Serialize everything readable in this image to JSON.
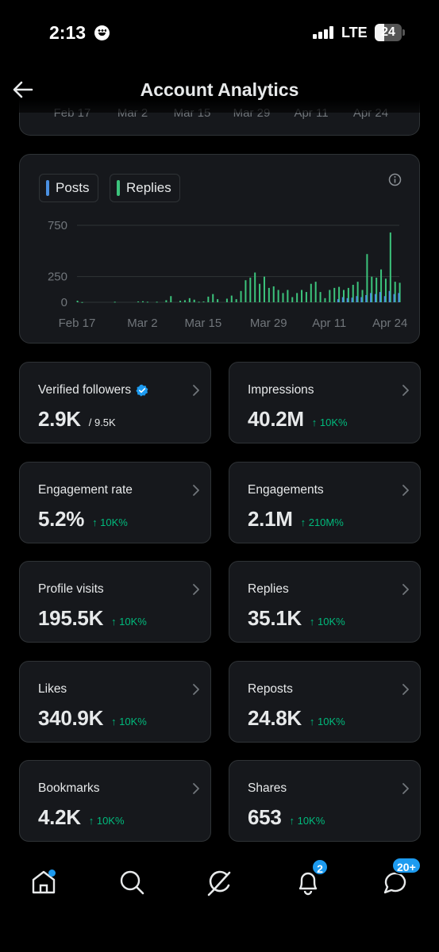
{
  "status_bar": {
    "time": "2:13",
    "network": "LTE",
    "battery": "24"
  },
  "header": {
    "title": "Account Analytics"
  },
  "prev_chart_axis": [
    "Feb 17",
    "Mar 2",
    "Mar 15",
    "Mar 29",
    "Apr 11",
    "Apr 24"
  ],
  "chart_card": {
    "legend": [
      {
        "label": "Posts",
        "color": "#4a90e2"
      },
      {
        "label": "Replies",
        "color": "#3cc47c"
      }
    ]
  },
  "chart_data": {
    "type": "bar",
    "y_ticks": [
      0,
      250,
      750
    ],
    "ylim": [
      0,
      820
    ],
    "x_tick_labels": [
      "Feb 17",
      "Mar 2",
      "Mar 15",
      "Mar 29",
      "Apr 11",
      "Apr 24"
    ],
    "x_tick_index": [
      0,
      14,
      27,
      41,
      54,
      67
    ],
    "series": [
      {
        "name": "Replies",
        "color": "#3cc47c",
        "values": [
          15,
          2,
          0,
          0,
          0,
          0,
          0,
          0,
          5,
          0,
          0,
          0,
          0,
          8,
          10,
          5,
          0,
          5,
          0,
          20,
          60,
          0,
          15,
          20,
          40,
          25,
          5,
          8,
          55,
          80,
          30,
          0,
          35,
          65,
          30,
          110,
          215,
          240,
          290,
          180,
          250,
          140,
          155,
          120,
          90,
          120,
          50,
          90,
          120,
          100,
          180,
          200,
          100,
          40,
          120,
          140,
          150,
          120,
          140,
          170,
          200,
          120,
          470,
          250,
          240,
          320,
          230,
          680,
          200,
          190
        ]
      },
      {
        "name": "Posts",
        "color": "#4a90e2",
        "values": [
          0,
          0,
          0,
          0,
          0,
          0,
          0,
          0,
          0,
          0,
          0,
          0,
          0,
          0,
          0,
          0,
          0,
          0,
          0,
          0,
          0,
          0,
          0,
          0,
          0,
          0,
          0,
          0,
          0,
          0,
          0,
          0,
          0,
          0,
          0,
          0,
          0,
          0,
          0,
          0,
          0,
          0,
          0,
          0,
          0,
          0,
          0,
          0,
          0,
          0,
          0,
          0,
          0,
          0,
          0,
          0,
          30,
          50,
          40,
          45,
          60,
          50,
          70,
          90,
          80,
          100,
          60,
          110,
          80,
          90
        ]
      }
    ]
  },
  "stats": [
    {
      "label": "Verified followers",
      "value": "2.9K",
      "sub": "/ 9.5K",
      "delta": "",
      "verified": true
    },
    {
      "label": "Impressions",
      "value": "40.2M",
      "sub": "",
      "delta": "↑ 10K%"
    },
    {
      "label": "Engagement rate",
      "value": "5.2%",
      "sub": "",
      "delta": "↑ 10K%"
    },
    {
      "label": "Engagements",
      "value": "2.1M",
      "sub": "",
      "delta": "↑ 210M%"
    },
    {
      "label": "Profile visits",
      "value": "195.5K",
      "sub": "",
      "delta": "↑ 10K%"
    },
    {
      "label": "Replies",
      "value": "35.1K",
      "sub": "",
      "delta": "↑ 10K%"
    },
    {
      "label": "Likes",
      "value": "340.9K",
      "sub": "",
      "delta": "↑ 10K%"
    },
    {
      "label": "Reposts",
      "value": "24.8K",
      "sub": "",
      "delta": "↑ 10K%"
    },
    {
      "label": "Bookmarks",
      "value": "4.2K",
      "sub": "",
      "delta": "↑ 10K%"
    },
    {
      "label": "Shares",
      "value": "653",
      "sub": "",
      "delta": "↑ 10K%"
    }
  ],
  "nav": {
    "notifications_badge": "2",
    "messages_badge": "20+"
  }
}
